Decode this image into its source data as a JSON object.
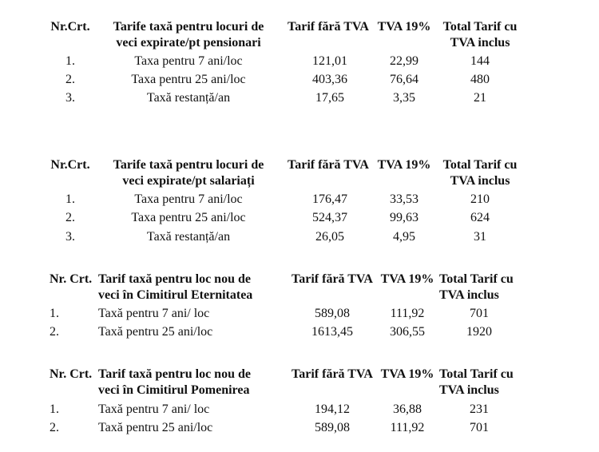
{
  "tables": [
    {
      "header": [
        [
          "Nr.Crt."
        ],
        [
          "Tarife taxă pentru locuri de",
          "veci expirate/pt pensionari"
        ],
        [
          "Tarif fără TVA"
        ],
        [
          "TVA 19%"
        ],
        [
          "Total Tarif cu",
          "TVA inclus"
        ]
      ],
      "rows": [
        [
          "1.",
          "Taxa pentru 7 ani/loc",
          "121,01",
          "22,99",
          "144"
        ],
        [
          "2.",
          "Taxa pentru 25 ani/loc",
          "403,36",
          "76,64",
          "480"
        ],
        [
          "3.",
          "Taxă restanță/an",
          "17,65",
          "3,35",
          "21"
        ]
      ]
    },
    {
      "header": [
        [
          "Nr.Crt."
        ],
        [
          "Tarife taxă pentru locuri de",
          "veci expirate/pt salariați"
        ],
        [
          "Tarif fără TVA"
        ],
        [
          "TVA 19%"
        ],
        [
          "Total Tarif cu",
          "TVA inclus"
        ]
      ],
      "rows": [
        [
          "1.",
          "Taxa pentru 7 ani/loc",
          "176,47",
          "33,53",
          "210"
        ],
        [
          "2.",
          "Taxa pentru 25 ani/loc",
          "524,37",
          "99,63",
          "624"
        ],
        [
          "3.",
          "Taxă restanță/an",
          "26,05",
          "4,95",
          "31"
        ]
      ]
    },
    {
      "header": [
        [
          "Nr. Crt."
        ],
        [
          "Tarif taxă pentru loc nou de",
          "veci în Cimitirul Eternitatea"
        ],
        [
          "Tarif fără TVA"
        ],
        [
          "TVA 19%"
        ],
        [
          "Total Tarif cu",
          "TVA inclus"
        ]
      ],
      "rows": [
        [
          "1.",
          "Taxă pentru 7 ani/ loc",
          "589,08",
          "111,92",
          "701"
        ],
        [
          "2.",
          "Taxă pentru 25 ani/loc",
          "1613,45",
          "306,55",
          "1920"
        ]
      ]
    },
    {
      "header": [
        [
          "Nr. Crt."
        ],
        [
          "Tarif taxă pentru loc nou de",
          "veci în Cimitirul Pomenirea"
        ],
        [
          "Tarif fără TVA"
        ],
        [
          "TVA 19%"
        ],
        [
          "Total Tarif cu",
          "TVA inclus"
        ]
      ],
      "rows": [
        [
          "1.",
          "Taxă pentru 7 ani/ loc",
          "194,12",
          "36,88",
          "231"
        ],
        [
          "2.",
          "Taxă pentru 25 ani/loc",
          "589,08",
          "111,92",
          "701"
        ]
      ]
    }
  ]
}
